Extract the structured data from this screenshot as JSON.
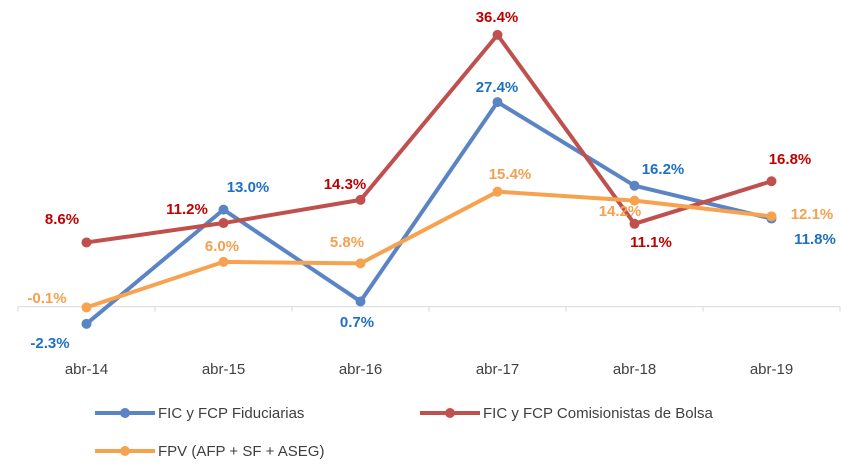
{
  "chart_data": {
    "type": "line",
    "categories": [
      "abr-14",
      "abr-15",
      "abr-16",
      "abr-17",
      "abr-18",
      "abr-19"
    ],
    "ylim": [
      -5,
      40
    ],
    "series": [
      {
        "name": "FIC y FCP Fiduciarias",
        "color": "#5b84c4",
        "label_color": "#1f70c1",
        "values": [
          -2.3,
          13.0,
          0.7,
          27.4,
          16.2,
          11.8
        ],
        "value_labels": [
          "-2.3%",
          "13.0%",
          "0.7%",
          "27.4%",
          "16.2%",
          "11.8%"
        ]
      },
      {
        "name": "FIC y FCP Comisionistas de Bolsa",
        "color": "#c0504d",
        "label_color": "#c00000",
        "values": [
          8.6,
          11.2,
          14.3,
          36.4,
          11.1,
          16.8
        ],
        "value_labels": [
          "8.6%",
          "11.2%",
          "14.3%",
          "36.4%",
          "11.1%",
          "16.8%"
        ]
      },
      {
        "name": "FPV (AFP + SF + ASEG)",
        "color": "#f7a24f",
        "label_color": "#f5a04e",
        "values": [
          -0.1,
          6.0,
          5.8,
          15.4,
          14.2,
          12.1
        ],
        "value_labels": [
          "-0.1%",
          "6.0%",
          "5.8%",
          "15.4%",
          "14.2%",
          "12.1%"
        ]
      }
    ]
  }
}
